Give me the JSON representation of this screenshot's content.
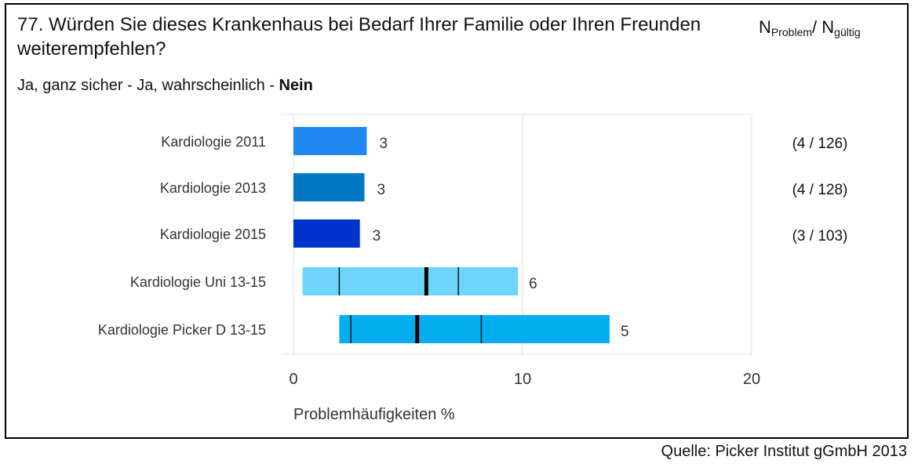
{
  "title": "77. Würden Sie dieses Krankenhaus bei Bedarf Ihrer Familie oder Ihren Freunden weiterempfehlen?",
  "n_header": {
    "n": "N",
    "problem": "Problem",
    "slash": "/ ",
    "n2": "N",
    "gueltig": "gültig"
  },
  "subtitle": {
    "prefix": "Ja, ganz sicher - Ja, wahrscheinlich - ",
    "highlight": "Nein"
  },
  "source": "Quelle: Picker Institut gGmbH 2013",
  "chart_data": {
    "type": "bar",
    "orientation": "horizontal",
    "xlabel": "Problemhäufigkeiten %",
    "xlim": [
      0,
      20
    ],
    "xticks": [
      0,
      10,
      20
    ],
    "grid": true,
    "categories": [
      "Kardiologie 2011",
      "Kardiologie 2013",
      "Kardiologie 2015",
      "Kardiologie Uni 13-15",
      "Kardiologie Picker D 13-15"
    ],
    "bars": [
      {
        "category": "Kardiologie 2011",
        "value": 3.2,
        "label": "3",
        "color": "#1e88f0",
        "n_text": "(4 / 126)"
      },
      {
        "category": "Kardiologie 2013",
        "value": 3.1,
        "label": "3",
        "color": "#0277c4",
        "n_text": "(4 / 128)"
      },
      {
        "category": "Kardiologie 2015",
        "value": 2.9,
        "label": "3",
        "color": "#0033cc",
        "n_text": "(3 / 103)"
      }
    ],
    "ranges": [
      {
        "category": "Kardiologie Uni 13-15",
        "min": 0.4,
        "q1": 2.0,
        "median": 5.8,
        "q3": 7.2,
        "max": 9.8,
        "label": "6",
        "color": "#6dd5fb"
      },
      {
        "category": "Kardiologie Picker D 13-15",
        "min": 2.0,
        "q1": 2.5,
        "median": 5.4,
        "q3": 8.2,
        "max": 13.8,
        "label": "5",
        "color": "#03aef0"
      }
    ]
  }
}
